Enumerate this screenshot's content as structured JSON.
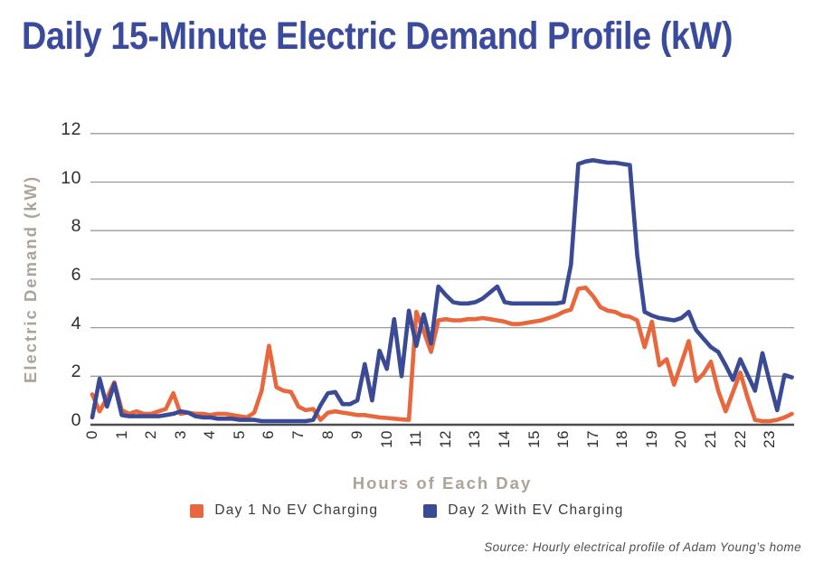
{
  "page": {
    "title": "Daily 15-Minute Electric Demand Profile (kW)"
  },
  "chart_data": {
    "type": "line",
    "title": "Daily 15-Minute Electric Demand Profile (kW)",
    "xlabel": "Hours of Each Day",
    "ylabel": "Electric Demand (kW)",
    "source": "Source: Hourly electrical profile of Adam Young’s home",
    "interval_minutes": 15,
    "x_start": 0,
    "x_step_hours": 0.25,
    "ylim": [
      0,
      12
    ],
    "y_ticks": [
      0,
      2,
      4,
      6,
      8,
      10,
      12
    ],
    "x_ticks": [
      0,
      1,
      2,
      3,
      4,
      5,
      6,
      7,
      8,
      9,
      10,
      11,
      12,
      13,
      14,
      15,
      16,
      17,
      18,
      19,
      20,
      21,
      22,
      23
    ],
    "grid": "horizontal",
    "legend_position": "bottom-center",
    "series": [
      {
        "name": "Day 1 No EV Charging",
        "color": "#E8673C",
        "values": [
          1.25,
          0.55,
          1.1,
          1.75,
          0.6,
          0.45,
          0.55,
          0.45,
          0.45,
          0.55,
          0.65,
          1.3,
          0.45,
          0.5,
          0.45,
          0.45,
          0.4,
          0.45,
          0.45,
          0.4,
          0.35,
          0.3,
          0.5,
          1.4,
          3.25,
          1.55,
          1.4,
          1.35,
          0.75,
          0.6,
          0.65,
          0.2,
          0.5,
          0.55,
          0.5,
          0.45,
          0.4,
          0.4,
          0.35,
          0.3,
          0.28,
          0.25,
          0.22,
          0.2,
          4.65,
          3.85,
          3.0,
          4.3,
          4.35,
          4.3,
          4.3,
          4.35,
          4.35,
          4.4,
          4.35,
          4.3,
          4.25,
          4.15,
          4.15,
          4.2,
          4.25,
          4.3,
          4.4,
          4.5,
          4.65,
          4.75,
          5.6,
          5.65,
          5.3,
          4.85,
          4.7,
          4.65,
          4.5,
          4.45,
          4.3,
          3.2,
          4.25,
          2.45,
          2.7,
          1.65,
          2.55,
          3.45,
          1.8,
          2.1,
          2.6,
          1.4,
          0.55,
          1.35,
          2.15,
          1.1,
          0.2,
          0.15,
          0.15,
          0.2,
          0.3,
          0.45
        ]
      },
      {
        "name": "Day 2 With EV Charging",
        "color": "#3A4A94",
        "values": [
          0.3,
          1.9,
          0.75,
          1.7,
          0.4,
          0.35,
          0.35,
          0.35,
          0.35,
          0.35,
          0.4,
          0.45,
          0.55,
          0.5,
          0.35,
          0.3,
          0.3,
          0.25,
          0.25,
          0.25,
          0.2,
          0.2,
          0.2,
          0.15,
          0.15,
          0.15,
          0.15,
          0.15,
          0.15,
          0.15,
          0.2,
          0.8,
          1.3,
          1.35,
          0.85,
          0.85,
          1.0,
          2.5,
          1.0,
          3.05,
          2.3,
          4.35,
          2.0,
          4.7,
          3.25,
          4.55,
          3.35,
          5.7,
          5.35,
          5.05,
          5.0,
          5.0,
          5.05,
          5.2,
          5.45,
          5.7,
          5.05,
          5.0,
          5.0,
          5.0,
          5.0,
          5.0,
          5.0,
          5.0,
          5.05,
          6.6,
          10.75,
          10.85,
          10.9,
          10.85,
          10.8,
          10.8,
          10.75,
          10.7,
          7.0,
          4.65,
          4.5,
          4.4,
          4.35,
          4.3,
          4.4,
          4.65,
          3.9,
          3.55,
          3.2,
          3.0,
          2.45,
          1.85,
          2.7,
          2.05,
          1.4,
          2.95,
          1.75,
          0.6,
          2.05,
          1.95
        ]
      }
    ]
  }
}
